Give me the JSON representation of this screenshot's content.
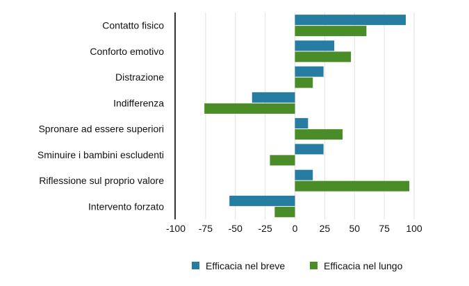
{
  "chart_data": {
    "type": "bar",
    "orientation": "horizontal",
    "title": "",
    "xlabel": "",
    "ylabel": "",
    "xlim": [
      -100,
      100
    ],
    "xticks": [
      -100,
      -75,
      -50,
      -25,
      0,
      25,
      50,
      75,
      100
    ],
    "xtick_labels": [
      "-100",
      "-75",
      "-50",
      "-25",
      "0",
      "25",
      "50",
      "75",
      "100"
    ],
    "grid": true,
    "legend_position": "bottom",
    "categories": [
      "Contatto fisico",
      "Conforto emotivo",
      "Distrazione",
      "Indifferenza",
      "Spronare ad essere superiori",
      "Sminuire i bambini escludenti",
      "Riflessione sul proprio valore",
      "Intervento forzato"
    ],
    "series": [
      {
        "name": "Efficacia nel breve",
        "color": "#277da1",
        "values": [
          93,
          33,
          24,
          -36,
          11,
          24,
          15,
          -55
        ]
      },
      {
        "name": "Efficacia nel lungo",
        "color": "#4a8c27",
        "values": [
          60,
          47,
          15,
          -76,
          40,
          -21,
          96,
          -17
        ]
      }
    ]
  }
}
